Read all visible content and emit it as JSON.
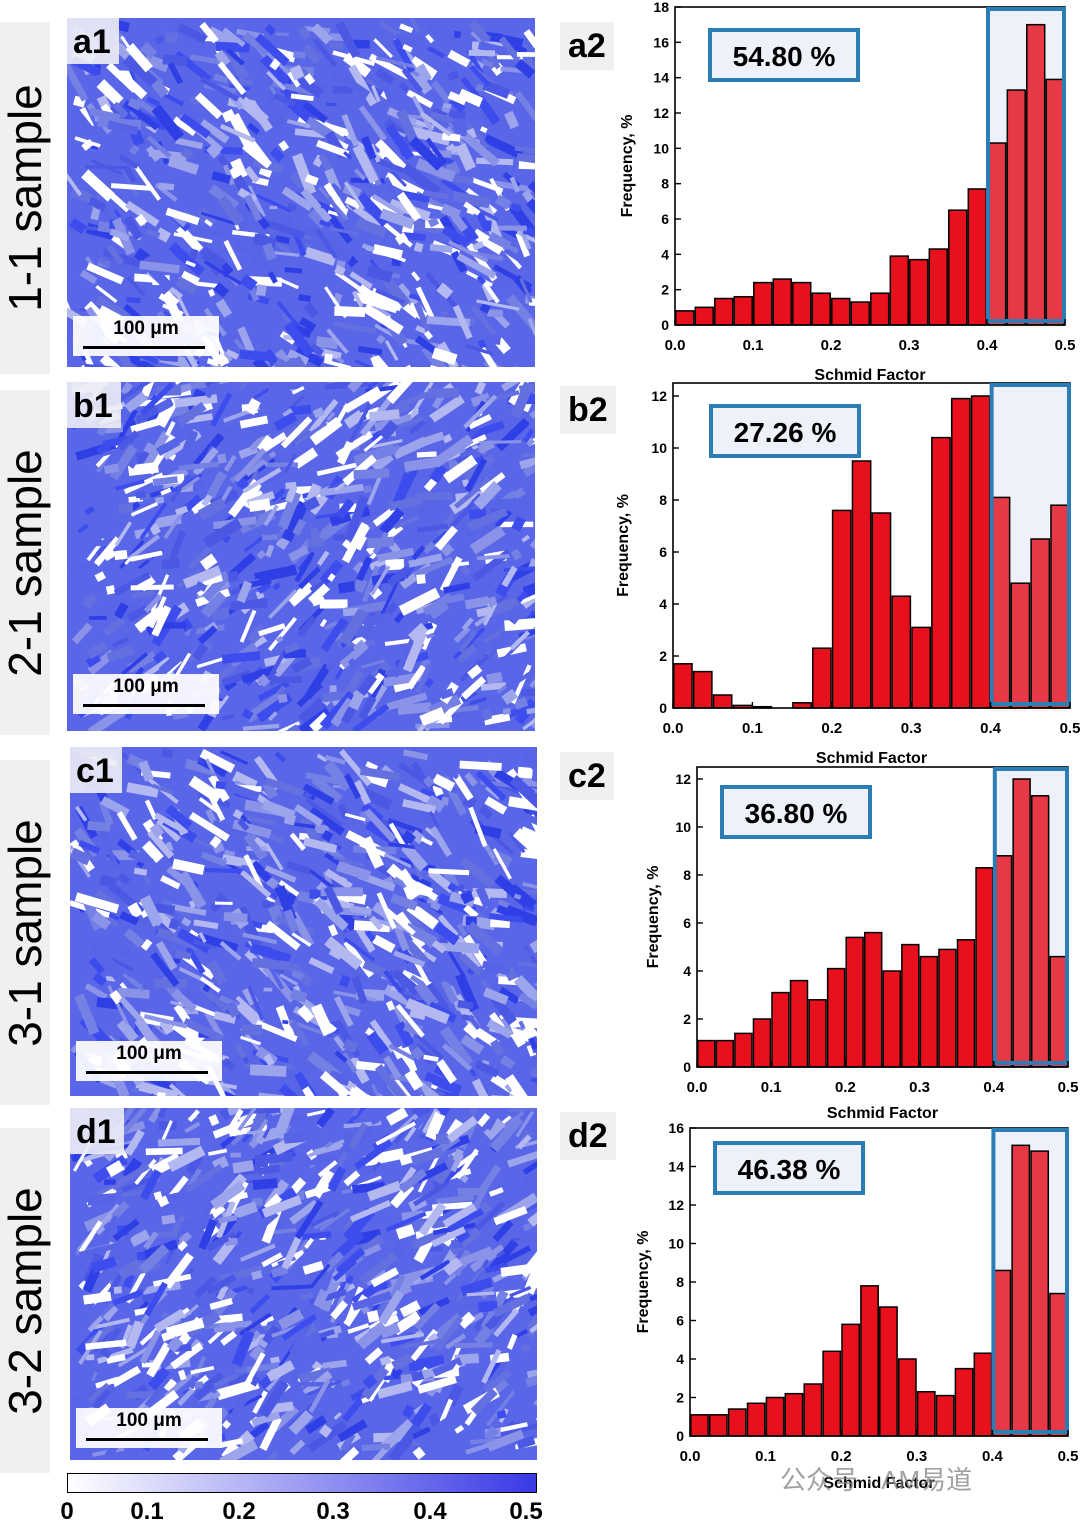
{
  "rows": [
    {
      "sample_label": "1-1 sample",
      "map_tag": "a1",
      "chart_tag": "a2",
      "scale": "100 μm",
      "percent": "54.80 %"
    },
    {
      "sample_label": "2-1 sample",
      "map_tag": "b1",
      "chart_tag": "b2",
      "scale": "100 μm",
      "percent": "27.26 %"
    },
    {
      "sample_label": "3-1 sample",
      "map_tag": "c1",
      "chart_tag": "c2",
      "scale": "100 μm",
      "percent": "36.80 %"
    },
    {
      "sample_label": "3-2 sample",
      "map_tag": "d1",
      "chart_tag": "d2",
      "scale": "100 μm",
      "percent": "46.38 %"
    }
  ],
  "colorbar": {
    "ticks": [
      "0",
      "0.1",
      "0.2",
      "0.3",
      "0.4",
      "0.5"
    ],
    "from": "#ffffff",
    "to": "#3939e6"
  },
  "watermark": "公众号 · AM易道",
  "colors": {
    "bar": "#e8101c",
    "bar_highlight": "#e63845",
    "box": "#2a7db5",
    "highlight_fill": "#eef1f9"
  },
  "chart_data": [
    {
      "type": "bar",
      "xlabel": "Schmid Factor",
      "ylabel": "Frequency, %",
      "xlim": [
        0,
        0.5
      ],
      "ylim": [
        0,
        18
      ],
      "yticks": [
        0,
        2,
        4,
        6,
        8,
        10,
        12,
        14,
        16,
        18
      ],
      "xticks": [
        "0.0",
        "0.1",
        "0.2",
        "0.3",
        "0.4",
        "0.5"
      ],
      "highlight_range": [
        0.4,
        0.5
      ],
      "annotation": "54.80 %",
      "bins": [
        0.0125,
        0.0375,
        0.0625,
        0.0875,
        0.1125,
        0.1375,
        0.1625,
        0.1875,
        0.2125,
        0.2375,
        0.2625,
        0.2875,
        0.3125,
        0.3375,
        0.3625,
        0.3875,
        0.4125,
        0.4375,
        0.4625,
        0.4875
      ],
      "values": [
        0.8,
        1.0,
        1.5,
        1.6,
        2.4,
        2.6,
        2.4,
        1.8,
        1.5,
        1.3,
        1.8,
        3.9,
        3.7,
        4.3,
        6.5,
        7.7,
        10.3,
        13.3,
        17.0,
        13.9
      ]
    },
    {
      "type": "bar",
      "xlabel": "Schmid Factor",
      "ylabel": "Frequency, %",
      "xlim": [
        0,
        0.5
      ],
      "ylim": [
        0,
        12.5
      ],
      "yticks": [
        0,
        2,
        4,
        6,
        8,
        10,
        12
      ],
      "xticks": [
        "0.0",
        "0.1",
        "0.2",
        "0.3",
        "0.4",
        "0.5"
      ],
      "highlight_range": [
        0.4,
        0.5
      ],
      "annotation": "27.26 %",
      "bins": [
        0.0125,
        0.0375,
        0.0625,
        0.0875,
        0.1125,
        0.1375,
        0.1625,
        0.1875,
        0.2125,
        0.2375,
        0.2625,
        0.2875,
        0.3125,
        0.3375,
        0.3625,
        0.3875,
        0.4125,
        0.4375,
        0.4625,
        0.4875
      ],
      "values": [
        1.7,
        1.4,
        0.5,
        0.1,
        0.05,
        0.0,
        0.2,
        2.3,
        7.6,
        9.5,
        7.5,
        4.3,
        3.1,
        10.4,
        11.9,
        12.0,
        8.1,
        4.8,
        6.5,
        7.8
      ]
    },
    {
      "type": "bar",
      "xlabel": "Schmid Factor",
      "ylabel": "Frequency, %",
      "xlim": [
        0,
        0.5
      ],
      "ylim": [
        0,
        12.5
      ],
      "yticks": [
        0,
        2,
        4,
        6,
        8,
        10,
        12
      ],
      "xticks": [
        "0.0",
        "0.1",
        "0.2",
        "0.3",
        "0.4",
        "0.5"
      ],
      "highlight_range": [
        0.4,
        0.5
      ],
      "annotation": "36.80 %",
      "bins": [
        0.0125,
        0.0375,
        0.0625,
        0.0875,
        0.1125,
        0.1375,
        0.1625,
        0.1875,
        0.2125,
        0.2375,
        0.2625,
        0.2875,
        0.3125,
        0.3375,
        0.3625,
        0.3875,
        0.4125,
        0.4375,
        0.4625,
        0.4875
      ],
      "values": [
        1.1,
        1.1,
        1.4,
        2.0,
        3.1,
        3.6,
        2.8,
        4.1,
        5.4,
        5.6,
        4.0,
        5.1,
        4.6,
        4.9,
        5.3,
        8.3,
        8.8,
        12.0,
        11.3,
        4.6
      ]
    },
    {
      "type": "bar",
      "xlabel": "Schmid Factor",
      "ylabel": "Frequency, %",
      "xlim": [
        0,
        0.5
      ],
      "ylim": [
        0,
        16
      ],
      "yticks": [
        0,
        2,
        4,
        6,
        8,
        10,
        12,
        14,
        16
      ],
      "xticks": [
        "0.0",
        "0.1",
        "0.2",
        "0.3",
        "0.4",
        "0.5"
      ],
      "highlight_range": [
        0.4,
        0.5
      ],
      "annotation": "46.38 %",
      "bins": [
        0.0125,
        0.0375,
        0.0625,
        0.0875,
        0.1125,
        0.1375,
        0.1625,
        0.1875,
        0.2125,
        0.2375,
        0.2625,
        0.2875,
        0.3125,
        0.3375,
        0.3625,
        0.3875,
        0.4125,
        0.4375,
        0.4625,
        0.4875
      ],
      "values": [
        1.1,
        1.1,
        1.4,
        1.7,
        2.0,
        2.2,
        2.7,
        4.4,
        5.8,
        7.8,
        6.7,
        4.0,
        2.3,
        2.1,
        3.5,
        4.3,
        8.6,
        15.1,
        14.8,
        7.4
      ]
    }
  ]
}
